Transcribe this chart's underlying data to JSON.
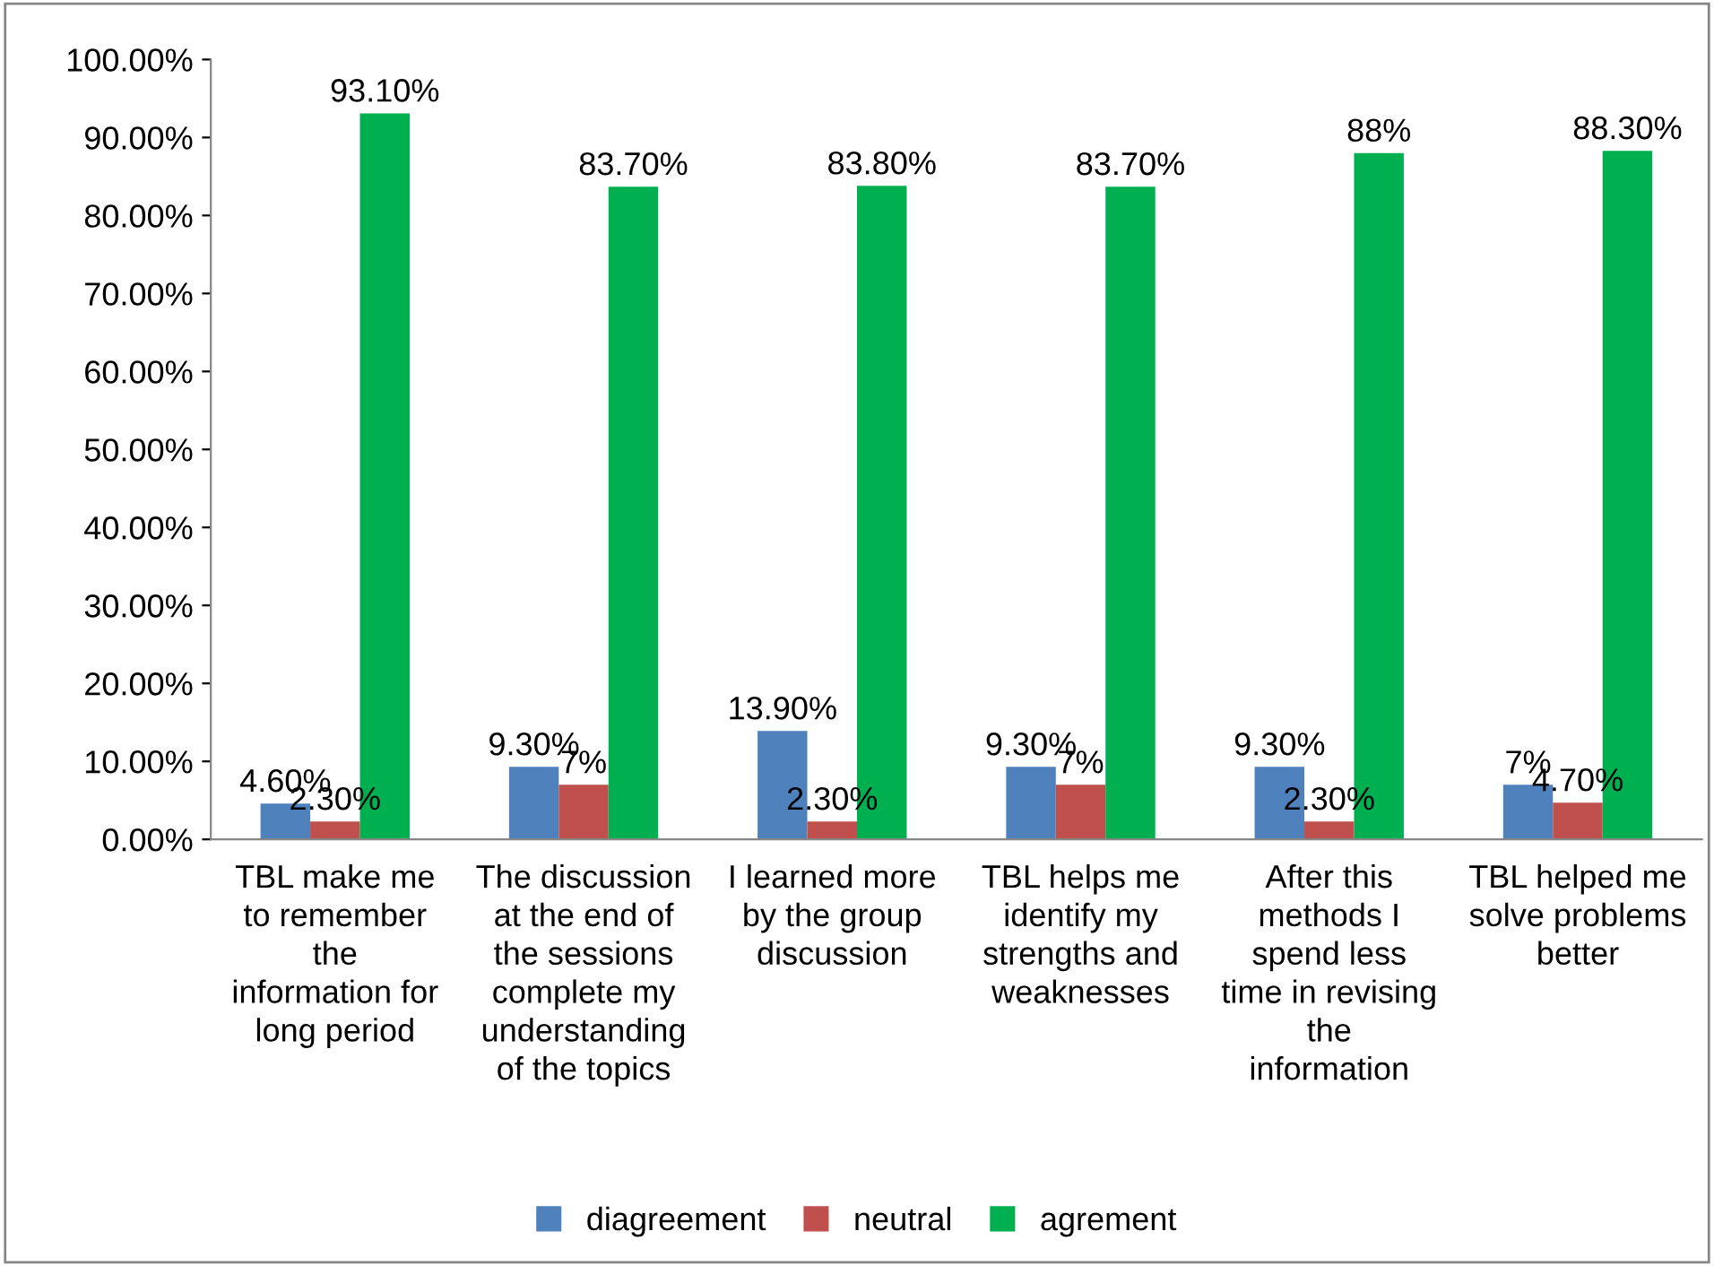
{
  "chart_data": {
    "type": "bar",
    "categories": [
      "TBL make me\nto remember\nthe\ninformation for\nlong period",
      "The discussion\nat the end of\nthe sessions\ncomplete my\nunderstanding\nof the topics",
      "I learned more\nby the group\ndiscussion",
      "TBL helps me\nidentify my\nstrengths and\nweaknesses",
      "After this\nmethods I\nspend less\ntime in revising\nthe\ninformation",
      "TBL helped me\nsolve problems\nbetter"
    ],
    "series": [
      {
        "name": "diagreement",
        "color": "#4f81bd",
        "values": [
          4.6,
          9.3,
          13.9,
          9.3,
          9.3,
          7
        ],
        "value_labels": [
          "4.60%",
          "9.30%",
          "13.90%",
          "9.30%",
          "9.30%",
          "7%"
        ]
      },
      {
        "name": "neutral",
        "color": "#c0504d",
        "values": [
          2.3,
          7,
          2.3,
          7,
          2.3,
          4.7
        ],
        "value_labels": [
          "2.30%",
          "7%",
          "2.30%",
          "7%",
          "2.30%",
          "4.70%"
        ]
      },
      {
        "name": "agrement",
        "color": "#00b050",
        "values": [
          93.1,
          83.7,
          83.8,
          83.7,
          88,
          88.3
        ],
        "value_labels": [
          "93.10%",
          "83.70%",
          "83.80%",
          "83.70%",
          "88%",
          "88.30%"
        ]
      }
    ],
    "ylim": [
      0,
      100
    ],
    "yticks": [
      {
        "value": 0,
        "label": "0.00%"
      },
      {
        "value": 10,
        "label": "10.00%"
      },
      {
        "value": 20,
        "label": "20.00%"
      },
      {
        "value": 30,
        "label": "30.00%"
      },
      {
        "value": 40,
        "label": "40.00%"
      },
      {
        "value": 50,
        "label": "50.00%"
      },
      {
        "value": 60,
        "label": "60.00%"
      },
      {
        "value": 70,
        "label": "70.00%"
      },
      {
        "value": 80,
        "label": "80.00%"
      },
      {
        "value": 90,
        "label": "90.00%"
      },
      {
        "value": 100,
        "label": "100.00%"
      }
    ],
    "legend": "bottom",
    "grid": false
  }
}
